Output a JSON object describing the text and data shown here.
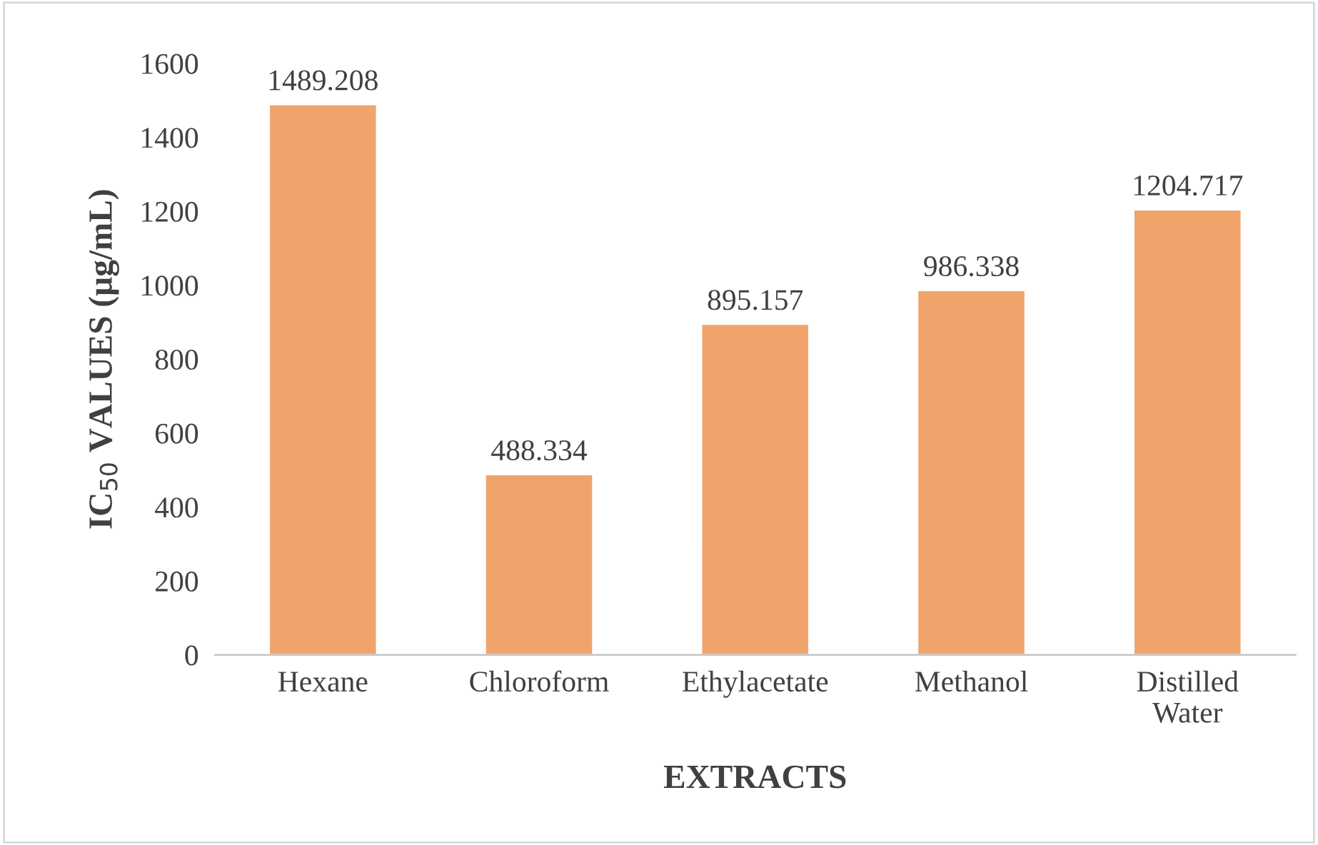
{
  "chart_data": {
    "type": "bar",
    "xlabel": "EXTRACTS",
    "ylabel": "IC$_{50}$ VALUES (µg/mL)",
    "categories": [
      "Hexane",
      "Chloroform",
      "Ethylacetate",
      "Methanol",
      "Distilled\nWater"
    ],
    "values": [
      1489.208,
      488.334,
      895.157,
      986.338,
      1204.717
    ],
    "value_labels": [
      "1489.208",
      "488.334",
      "895.157",
      "986.338",
      "1204.717"
    ],
    "color": "#f0a46c",
    "ylim": [
      0,
      1600
    ],
    "yticks": [
      0,
      200,
      400,
      600,
      800,
      1000,
      1200,
      1400,
      1600
    ],
    "grid": false
  }
}
